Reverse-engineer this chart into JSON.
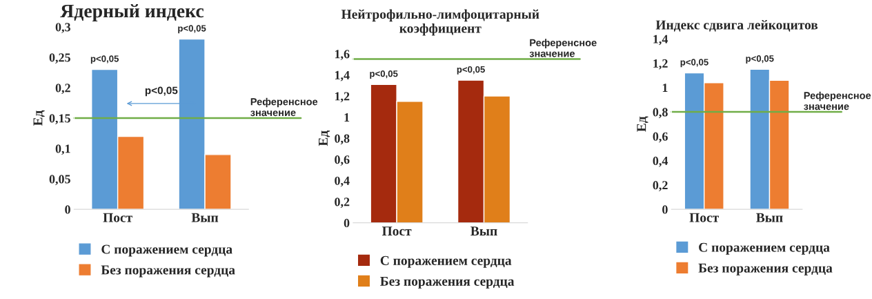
{
  "chart_data": [
    {
      "type": "bar",
      "title": "Ядерный индекс",
      "ylabel": "Ед",
      "categories": [
        "Пост",
        "Вып"
      ],
      "series": [
        {
          "name": "С поражением сердца",
          "color": "#5b9bd5",
          "values": [
            0.23,
            0.28
          ]
        },
        {
          "name": "Без поражения сердца",
          "color": "#ed7d31",
          "values": [
            0.12,
            0.09
          ]
        }
      ],
      "ylim": [
        0,
        0.3
      ],
      "yticks": [
        {
          "value": 0,
          "label": "0"
        },
        {
          "value": 0.05,
          "label": "0,05"
        },
        {
          "value": 0.1,
          "label": "0,1"
        },
        {
          "value": 0.15,
          "label": "0,15"
        },
        {
          "value": 0.2,
          "label": "0,2"
        },
        {
          "value": 0.25,
          "label": "0,25"
        },
        {
          "value": 0.3,
          "label": "0,3"
        }
      ],
      "ref_lines": [
        {
          "axis": "y",
          "value": 0.15,
          "label": "Референсное\nзначение",
          "color": "#70ad47"
        }
      ],
      "annotations": [
        {
          "text": "p<0,05",
          "x": "Пост",
          "y": 0.23
        },
        {
          "text": "p<0,05",
          "x": "Вып",
          "y": 0.28
        },
        "p<0,05"
      ],
      "legend": "bottom"
    },
    {
      "type": "bar",
      "title": "Нейтрофильно-лимфоцитарный\nкоэффициент",
      "ylabel": "Ед",
      "categories": [
        "Пост",
        "Вып"
      ],
      "series": [
        {
          "name": "С поражением сердца",
          "color": "#a52a0e",
          "values": [
            1.31,
            1.35
          ]
        },
        {
          "name": "Без поражения сердца",
          "color": "#e07f1a",
          "values": [
            1.15,
            1.2
          ]
        }
      ],
      "ylim": [
        0,
        1.6
      ],
      "yticks": [
        {
          "value": 0,
          "label": "0"
        },
        {
          "value": 0.2,
          "label": "0,2"
        },
        {
          "value": 0.4,
          "label": "0,4"
        },
        {
          "value": 0.6,
          "label": "0,6"
        },
        {
          "value": 0.8,
          "label": "0,8"
        },
        {
          "value": 1,
          "label": "1"
        },
        {
          "value": 1.2,
          "label": "1,2"
        },
        {
          "value": 1.4,
          "label": "1,4"
        },
        {
          "value": 1.6,
          "label": "1,6"
        }
      ],
      "ref_lines": [
        {
          "axis": "y",
          "value": 1.55,
          "label": "Референсное\nзначение",
          "color": "#70ad47"
        }
      ],
      "annotations": [
        {
          "text": "p<0,05",
          "x": "Пост",
          "y": 1.31
        },
        {
          "text": "p<0,05",
          "x": "Вып",
          "y": 1.35
        }
      ],
      "legend": "bottom"
    },
    {
      "type": "bar",
      "title": "Индекс сдвига лейкоцитов",
      "ylabel": "Ед",
      "categories": [
        "Пост",
        "Вып"
      ],
      "series": [
        {
          "name": "С поражением сердца",
          "color": "#5b9bd5",
          "values": [
            1.12,
            1.15
          ]
        },
        {
          "name": "Без поражения сердца",
          "color": "#ed7d31",
          "values": [
            1.04,
            1.06
          ]
        }
      ],
      "ylim": [
        0,
        1.4
      ],
      "yticks": [
        {
          "value": 0,
          "label": "0"
        },
        {
          "value": 0.2,
          "label": "0,2"
        },
        {
          "value": 0.4,
          "label": "0,4"
        },
        {
          "value": 0.6,
          "label": "0,6"
        },
        {
          "value": 0.8,
          "label": "0,8"
        },
        {
          "value": 1,
          "label": "1"
        },
        {
          "value": 1.2,
          "label": "1,2"
        },
        {
          "value": 1.4,
          "label": "1,4"
        }
      ],
      "ref_lines": [
        {
          "axis": "y",
          "value": 0.8,
          "label": "Референсное\nзначение",
          "color": "#70ad47"
        }
      ],
      "annotations": [
        {
          "text": "p<0,05",
          "x": "Пост",
          "y": 1.12
        },
        {
          "text": "p<0,05",
          "x": "Вып",
          "y": 1.15
        }
      ],
      "legend": "bottom"
    }
  ]
}
